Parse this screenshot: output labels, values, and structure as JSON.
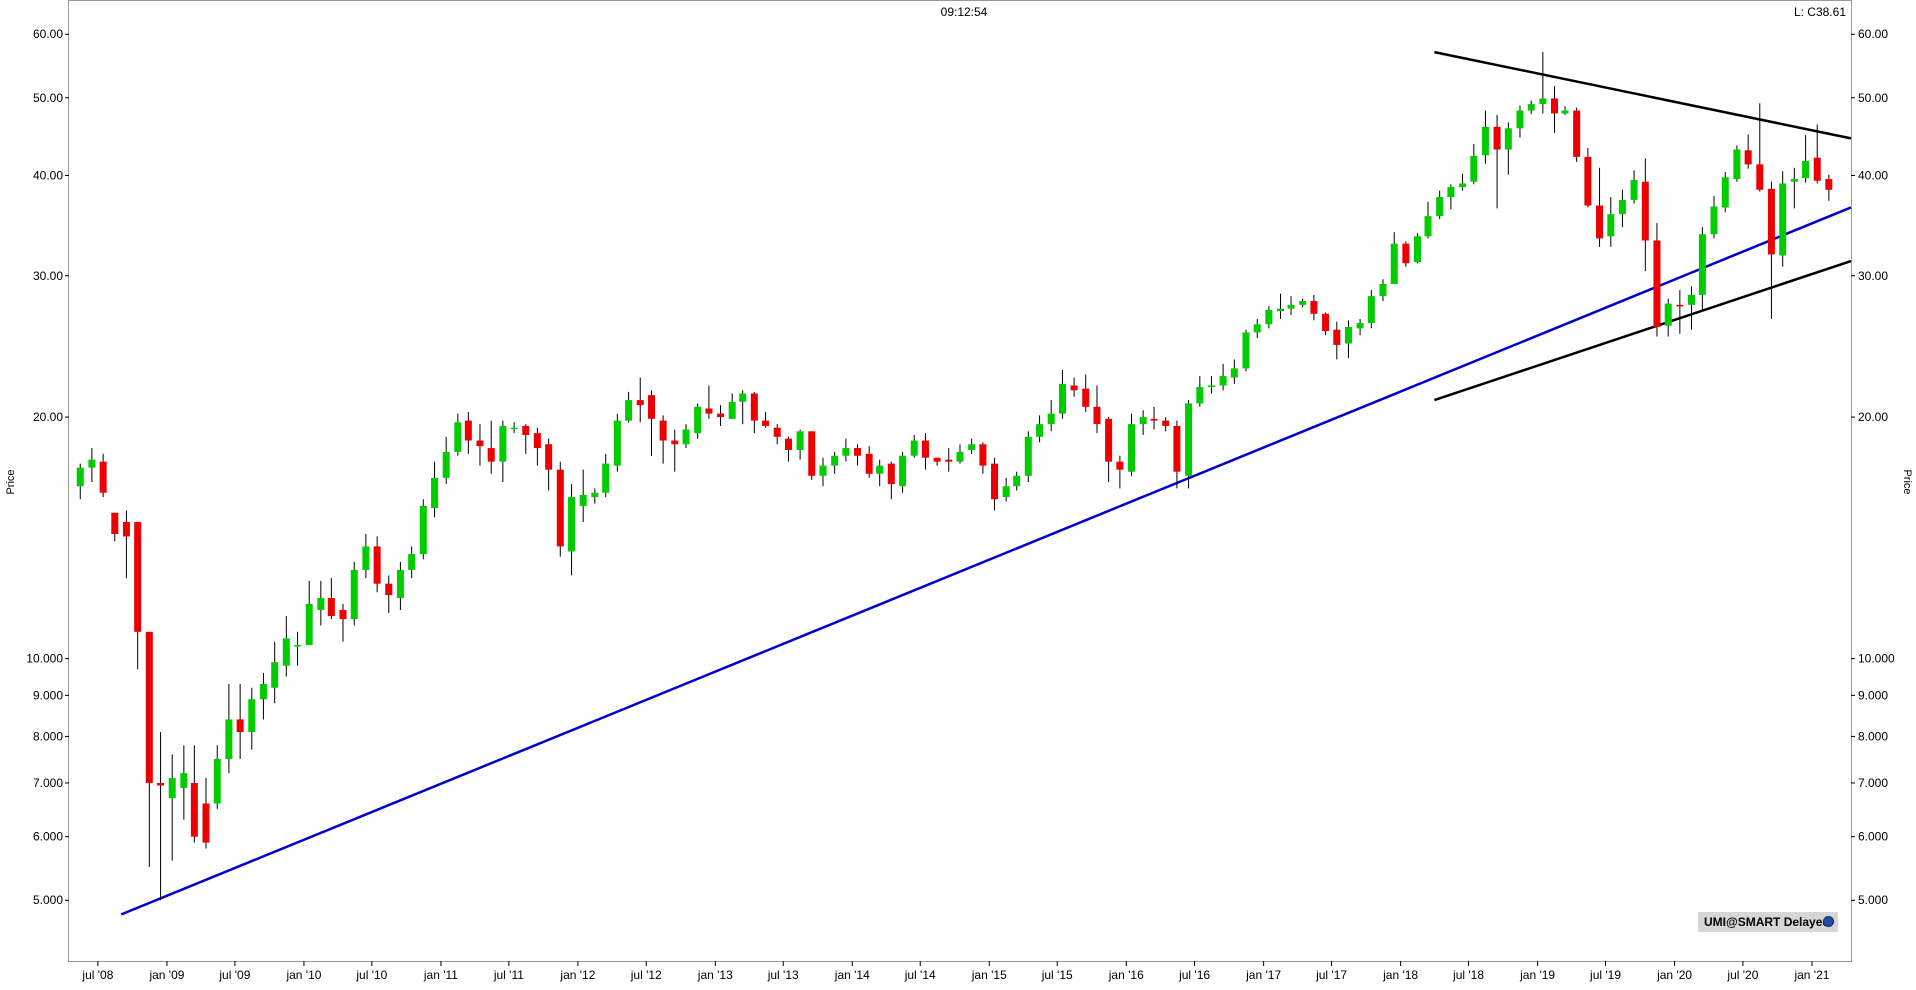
{
  "header": {
    "time": "09:12:54",
    "last_price": "L: C38.61"
  },
  "badge": {
    "label": "UMI@SMART Delayed",
    "icon": "globe-icon"
  },
  "colors": {
    "up": "#00cc00",
    "down": "#ee0000",
    "wick": "#000000",
    "support_line": "#0000cc",
    "pattern_line": "#000000",
    "frame": "#999999"
  },
  "chart_data": {
    "type": "candlestick",
    "scale": "log",
    "ylabel": "Price",
    "ylim": [
      4.2,
      66
    ],
    "xlim": [
      "2008-04-15",
      "2021-04-15"
    ],
    "y_ticks": [
      "60.00",
      "50.00",
      "40.00",
      "30.00",
      "20.00",
      "10.000",
      "9.000",
      "8.000",
      "7.000",
      "6.000",
      "5.000"
    ],
    "x_ticks": [
      {
        "label": "jul '08",
        "date": "2008-07-01"
      },
      {
        "label": "jan '09",
        "date": "2009-01-01"
      },
      {
        "label": "jul '09",
        "date": "2009-07-01"
      },
      {
        "label": "jan '10",
        "date": "2010-01-01"
      },
      {
        "label": "jul '10",
        "date": "2010-07-01"
      },
      {
        "label": "jan '11",
        "date": "2011-01-01"
      },
      {
        "label": "jul '11",
        "date": "2011-07-01"
      },
      {
        "label": "jan '12",
        "date": "2012-01-01"
      },
      {
        "label": "jul '12",
        "date": "2012-07-01"
      },
      {
        "label": "jan '13",
        "date": "2013-01-01"
      },
      {
        "label": "jul '13",
        "date": "2013-07-01"
      },
      {
        "label": "jan '14",
        "date": "2014-01-01"
      },
      {
        "label": "jul '14",
        "date": "2014-07-01"
      },
      {
        "label": "jan '15",
        "date": "2015-01-01"
      },
      {
        "label": "jul '15",
        "date": "2015-07-01"
      },
      {
        "label": "jan '16",
        "date": "2016-01-01"
      },
      {
        "label": "jul '16",
        "date": "2016-07-01"
      },
      {
        "label": "jan '17",
        "date": "2017-01-01"
      },
      {
        "label": "jul '17",
        "date": "2017-07-01"
      },
      {
        "label": "jan '18",
        "date": "2018-01-01"
      },
      {
        "label": "jul '18",
        "date": "2018-07-01"
      },
      {
        "label": "jan '19",
        "date": "2019-01-01"
      },
      {
        "label": "jul '19",
        "date": "2019-07-01"
      },
      {
        "label": "jan '20",
        "date": "2020-01-01"
      },
      {
        "label": "jul '20",
        "date": "2020-07-01"
      },
      {
        "label": "jan '21",
        "date": "2021-01-01"
      }
    ],
    "candles_monthly_from": "2008-05",
    "candles": [
      [
        16.4,
        17.3,
        15.8,
        17.5
      ],
      [
        17.3,
        17.7,
        16.6,
        18.3
      ],
      [
        17.6,
        16.1,
        15.9,
        18.0
      ],
      [
        15.2,
        14.3,
        14.0,
        15.2
      ],
      [
        14.8,
        14.2,
        12.6,
        15.3
      ],
      [
        14.8,
        10.8,
        9.7,
        14.8
      ],
      [
        10.8,
        7.0,
        5.5,
        10.8
      ],
      [
        7.0,
        6.95,
        5.0,
        8.1
      ],
      [
        6.7,
        7.1,
        5.6,
        7.6
      ],
      [
        6.9,
        7.2,
        6.3,
        7.8
      ],
      [
        7.0,
        6.0,
        5.9,
        7.8
      ],
      [
        6.6,
        5.9,
        5.8,
        7.1
      ],
      [
        6.6,
        7.5,
        6.5,
        7.8
      ],
      [
        7.5,
        8.4,
        7.2,
        9.3
      ],
      [
        8.4,
        8.1,
        7.5,
        9.3
      ],
      [
        8.1,
        8.9,
        7.7,
        9.2
      ],
      [
        8.9,
        9.3,
        8.4,
        9.6
      ],
      [
        9.2,
        9.9,
        8.8,
        10.5
      ],
      [
        9.8,
        10.6,
        9.5,
        11.3
      ],
      [
        10.4,
        10.4,
        9.8,
        10.8
      ],
      [
        10.4,
        11.7,
        10.4,
        12.5
      ],
      [
        11.5,
        11.9,
        11.0,
        12.5
      ],
      [
        11.9,
        11.3,
        11.2,
        12.6
      ],
      [
        11.5,
        11.2,
        10.5,
        11.7
      ],
      [
        11.2,
        12.9,
        11.0,
        13.2
      ],
      [
        12.9,
        13.8,
        12.6,
        14.3
      ],
      [
        13.8,
        12.4,
        12.1,
        14.2
      ],
      [
        12.4,
        12.0,
        11.4,
        12.7
      ],
      [
        11.9,
        12.9,
        11.5,
        13.2
      ],
      [
        12.9,
        13.5,
        12.6,
        13.8
      ],
      [
        13.5,
        15.5,
        13.3,
        15.8
      ],
      [
        15.4,
        16.8,
        15.0,
        17.6
      ],
      [
        16.8,
        18.1,
        16.5,
        18.9
      ],
      [
        18.1,
        19.7,
        17.9,
        20.2
      ],
      [
        19.8,
        18.7,
        18.0,
        20.3
      ],
      [
        18.7,
        18.4,
        17.4,
        19.6
      ],
      [
        18.3,
        17.6,
        17.0,
        19.8
      ],
      [
        17.6,
        19.5,
        16.6,
        19.8
      ],
      [
        19.4,
        19.4,
        19.1,
        19.7
      ],
      [
        19.5,
        19.0,
        18.0,
        19.6
      ],
      [
        19.1,
        18.3,
        17.4,
        19.4
      ],
      [
        18.5,
        17.2,
        16.2,
        18.8
      ],
      [
        17.2,
        13.8,
        13.4,
        17.6
      ],
      [
        13.6,
        15.9,
        12.7,
        16.5
      ],
      [
        15.5,
        16.0,
        14.8,
        17.2
      ],
      [
        15.9,
        16.1,
        15.6,
        16.3
      ],
      [
        16.1,
        17.5,
        15.9,
        18.0
      ],
      [
        17.4,
        19.8,
        17.1,
        20.2
      ],
      [
        19.8,
        21.0,
        19.7,
        21.5
      ],
      [
        21.0,
        20.7,
        19.7,
        22.4
      ],
      [
        21.3,
        19.9,
        17.9,
        21.6
      ],
      [
        19.8,
        18.7,
        17.5,
        20.1
      ],
      [
        18.7,
        18.5,
        17.1,
        19.3
      ],
      [
        18.5,
        19.3,
        18.3,
        19.6
      ],
      [
        19.1,
        20.6,
        18.8,
        20.8
      ],
      [
        20.5,
        20.2,
        19.9,
        21.9
      ],
      [
        20.2,
        20.0,
        19.5,
        20.7
      ],
      [
        19.9,
        20.9,
        19.9,
        21.4
      ],
      [
        20.9,
        21.4,
        19.6,
        21.6
      ],
      [
        21.4,
        19.8,
        19.1,
        21.5
      ],
      [
        19.8,
        19.5,
        19.4,
        20.3
      ],
      [
        19.4,
        18.9,
        18.5,
        19.6
      ],
      [
        18.8,
        18.2,
        17.6,
        18.9
      ],
      [
        18.2,
        19.2,
        17.7,
        19.3
      ],
      [
        19.2,
        16.9,
        16.7,
        19.2
      ],
      [
        16.9,
        17.4,
        16.4,
        17.8
      ],
      [
        17.4,
        17.9,
        17.0,
        18.1
      ],
      [
        17.9,
        18.3,
        17.6,
        18.8
      ],
      [
        18.3,
        17.9,
        17.4,
        18.5
      ],
      [
        18.0,
        17.0,
        16.8,
        18.4
      ],
      [
        17.0,
        17.4,
        16.4,
        17.7
      ],
      [
        17.5,
        16.5,
        15.8,
        17.6
      ],
      [
        16.4,
        17.9,
        16.1,
        18.1
      ],
      [
        17.9,
        18.7,
        17.8,
        19.0
      ],
      [
        18.7,
        17.8,
        17.2,
        19.1
      ],
      [
        17.8,
        17.6,
        17.4,
        17.8
      ],
      [
        17.7,
        17.6,
        17.1,
        18.3
      ],
      [
        17.6,
        18.1,
        17.5,
        18.5
      ],
      [
        18.2,
        18.5,
        18.0,
        18.8
      ],
      [
        18.5,
        17.4,
        17.0,
        18.6
      ],
      [
        17.5,
        15.8,
        15.3,
        17.8
      ],
      [
        15.9,
        16.4,
        15.7,
        16.8
      ],
      [
        16.4,
        16.9,
        16.2,
        17.1
      ],
      [
        16.9,
        18.9,
        16.6,
        19.2
      ],
      [
        18.9,
        19.6,
        18.6,
        20.1
      ],
      [
        19.6,
        20.2,
        19.2,
        21.0
      ],
      [
        20.2,
        22.0,
        19.9,
        22.9
      ],
      [
        21.9,
        21.6,
        21.2,
        22.4
      ],
      [
        21.7,
        20.6,
        20.3,
        22.6
      ],
      [
        20.6,
        19.6,
        19.1,
        21.9
      ],
      [
        19.9,
        17.6,
        16.6,
        20.0
      ],
      [
        17.6,
        17.2,
        16.3,
        17.9
      ],
      [
        17.1,
        19.6,
        16.9,
        20.2
      ],
      [
        19.6,
        20.0,
        19.0,
        20.4
      ],
      [
        19.9,
        19.8,
        19.3,
        20.6
      ],
      [
        19.8,
        19.5,
        19.2,
        20.0
      ],
      [
        19.5,
        17.1,
        16.3,
        19.8
      ],
      [
        16.9,
        20.8,
        16.3,
        21.0
      ],
      [
        20.8,
        21.8,
        20.6,
        22.5
      ],
      [
        21.8,
        21.9,
        21.4,
        22.5
      ],
      [
        21.9,
        22.5,
        21.6,
        23.3
      ],
      [
        22.4,
        23.0,
        22.0,
        23.6
      ],
      [
        23.0,
        25.5,
        22.8,
        25.7
      ],
      [
        25.5,
        26.1,
        25.1,
        26.5
      ],
      [
        26.1,
        27.2,
        25.8,
        27.5
      ],
      [
        27.1,
        27.3,
        26.5,
        28.5
      ],
      [
        27.3,
        27.6,
        26.8,
        28.3
      ],
      [
        27.6,
        27.9,
        27.4,
        28.1
      ],
      [
        27.9,
        26.9,
        26.4,
        28.4
      ],
      [
        26.9,
        25.6,
        25.3,
        27.0
      ],
      [
        25.7,
        24.6,
        23.6,
        26.3
      ],
      [
        24.7,
        25.9,
        23.7,
        26.4
      ],
      [
        25.8,
        26.2,
        25.3,
        26.5
      ],
      [
        26.2,
        28.3,
        25.8,
        28.8
      ],
      [
        28.3,
        29.3,
        27.9,
        29.7
      ],
      [
        29.3,
        32.9,
        29.3,
        34.0
      ],
      [
        32.9,
        31.1,
        30.8,
        33.1
      ],
      [
        31.2,
        33.6,
        31.1,
        33.9
      ],
      [
        33.6,
        35.6,
        33.4,
        37.1
      ],
      [
        35.6,
        37.6,
        35.3,
        38.3
      ],
      [
        37.6,
        38.7,
        36.3,
        39.0
      ],
      [
        38.7,
        39.1,
        38.3,
        40.2
      ],
      [
        39.3,
        42.3,
        39.0,
        43.8
      ],
      [
        42.4,
        46.0,
        41.4,
        48.2
      ],
      [
        46.0,
        43.1,
        36.4,
        47.6
      ],
      [
        43.1,
        45.8,
        40.1,
        46.6
      ],
      [
        45.8,
        48.2,
        44.6,
        48.9
      ],
      [
        48.2,
        49.1,
        47.7,
        49.6
      ],
      [
        49.1,
        49.9,
        47.8,
        57.0
      ],
      [
        49.9,
        47.8,
        45.2,
        51.7
      ],
      [
        47.8,
        48.2,
        47.6,
        48.8
      ],
      [
        48.2,
        42.2,
        41.6,
        48.6
      ],
      [
        42.2,
        36.7,
        36.5,
        43.3
      ],
      [
        36.7,
        33.4,
        32.6,
        40.9
      ],
      [
        33.6,
        35.8,
        32.6,
        37.6
      ],
      [
        35.8,
        37.3,
        34.5,
        38.4
      ],
      [
        37.3,
        39.5,
        36.9,
        40.6
      ],
      [
        39.3,
        33.2,
        30.4,
        42.0
      ],
      [
        33.2,
        25.9,
        25.2,
        34.9
      ],
      [
        26.0,
        27.7,
        25.2,
        28.1
      ],
      [
        27.6,
        27.5,
        25.4,
        28.8
      ],
      [
        27.6,
        28.4,
        25.7,
        29.1
      ],
      [
        28.4,
        33.8,
        27.1,
        34.5
      ],
      [
        33.8,
        36.6,
        33.4,
        37.7
      ],
      [
        36.5,
        39.8,
        36.0,
        40.4
      ],
      [
        39.6,
        43.1,
        39.3,
        43.6
      ],
      [
        43.0,
        41.3,
        40.8,
        45.0
      ],
      [
        41.3,
        38.4,
        38.2,
        49.2
      ],
      [
        38.5,
        31.9,
        26.5,
        39.3
      ],
      [
        31.8,
        39.1,
        30.8,
        40.5
      ],
      [
        39.3,
        39.6,
        36.4,
        40.9
      ],
      [
        39.7,
        41.7,
        39.2,
        44.9
      ],
      [
        42.1,
        39.4,
        39.1,
        46.3
      ],
      [
        39.6,
        38.4,
        37.2,
        40.1
      ]
    ],
    "trendlines": [
      {
        "name": "blue-support",
        "color": "#0000cc",
        "from": [
          "2008-09-01",
          4.8
        ],
        "to": [
          "2021-04-15",
          36.5
        ]
      },
      {
        "name": "upper-triangle",
        "color": "#000000",
        "from": [
          "2018-04-01",
          57.0
        ],
        "to": [
          "2021-04-15",
          44.5
        ]
      },
      {
        "name": "lower-triangle",
        "color": "#000000",
        "from": [
          "2018-04-01",
          21.0
        ],
        "to": [
          "2021-04-15",
          31.3
        ]
      }
    ]
  }
}
